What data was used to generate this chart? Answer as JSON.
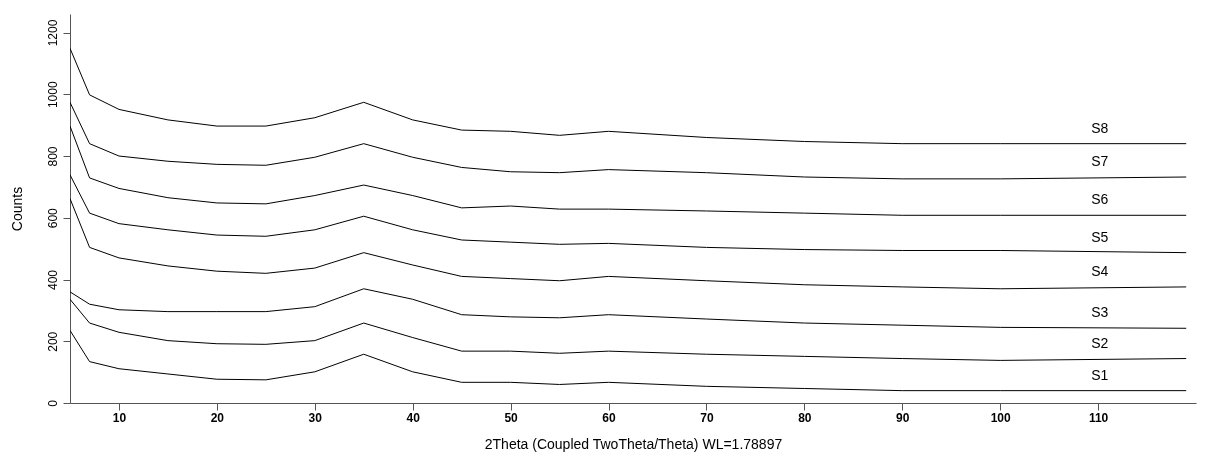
{
  "chart_data": {
    "type": "line",
    "xlabel": "2Theta (Coupled TwoTheta/Theta) WL=1.78897",
    "ylabel": "Counts",
    "x": [
      5,
      7,
      10,
      15,
      20,
      25,
      30,
      35,
      40,
      45,
      50,
      55,
      60,
      70,
      80,
      90,
      100,
      119
    ],
    "series": [
      {
        "name": "S8",
        "color": "#000000",
        "values": [
          1149,
          998,
          951,
          917,
          897,
          897,
          924,
          974,
          917,
          884,
          880,
          867,
          880,
          860,
          847,
          840,
          840,
          840
        ]
      },
      {
        "name": "S7",
        "color": "#000000",
        "values": [
          974,
          840,
          800,
          783,
          773,
          770,
          796,
          840,
          796,
          763,
          749,
          746,
          756,
          746,
          732,
          726,
          726,
          732
        ]
      },
      {
        "name": "S6",
        "color": "#000000",
        "values": [
          897,
          729,
          695,
          665,
          648,
          645,
          672,
          706,
          672,
          632,
          638,
          628,
          628,
          622,
          615,
          608,
          608,
          608
        ]
      },
      {
        "name": "S5",
        "color": "#000000",
        "values": [
          739,
          615,
          581,
          561,
          544,
          540,
          561,
          605,
          561,
          528,
          521,
          514,
          517,
          504,
          497,
          494,
          494,
          487
        ]
      },
      {
        "name": "S4",
        "color": "#000000",
        "values": [
          662,
          504,
          470,
          444,
          427,
          420,
          437,
          487,
          447,
          410,
          403,
          396,
          410,
          396,
          383,
          376,
          370,
          376
        ]
      },
      {
        "name": "S3",
        "color": "#000000",
        "values": [
          360,
          320,
          302,
          296,
          296,
          296,
          312,
          370,
          336,
          286,
          279,
          276,
          286,
          272,
          259,
          252,
          245,
          242
        ]
      },
      {
        "name": "S2",
        "color": "#000000",
        "values": [
          336,
          259,
          229,
          202,
          192,
          190,
          202,
          259,
          212,
          168,
          168,
          161,
          168,
          158,
          151,
          144,
          138,
          144
        ]
      },
      {
        "name": "S1",
        "color": "#000000",
        "values": [
          235,
          134,
          111,
          94,
          77,
          75,
          101,
          158,
          101,
          67,
          67,
          60,
          67,
          54,
          47,
          40,
          40,
          40
        ]
      }
    ],
    "xlim": [
      5,
      120
    ],
    "xticks": [
      10,
      20,
      30,
      40,
      50,
      60,
      70,
      80,
      90,
      100,
      110
    ],
    "ylim": [
      0,
      1260
    ],
    "yticks": [
      0,
      200,
      400,
      600,
      800,
      1000,
      1200
    ],
    "grid": false,
    "legend": false,
    "marker": "none",
    "line_style": "solid"
  }
}
